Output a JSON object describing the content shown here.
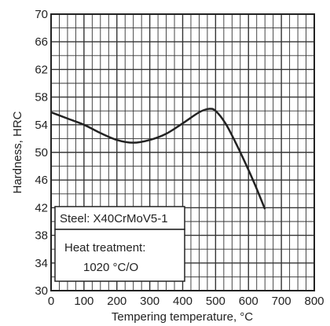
{
  "chart_data": {
    "type": "line",
    "xlabel": "Tempering temperature, °C",
    "ylabel": "Hardness, HRC",
    "xlim": [
      0,
      800
    ],
    "ylim": [
      30,
      70
    ],
    "x_ticks": [
      "0",
      "100",
      "200",
      "300",
      "400",
      "500",
      "600",
      "700",
      "800"
    ],
    "y_ticks": [
      "30",
      "34",
      "38",
      "42",
      "46",
      "50",
      "54",
      "58",
      "62",
      "66",
      "70"
    ],
    "grid": true,
    "series": [
      {
        "x": [
          0,
          50,
          100,
          150,
          200,
          250,
          300,
          350,
          400,
          450,
          480,
          500,
          530,
          560,
          590,
          620,
          650
        ],
        "y": [
          55.8,
          54.9,
          54.0,
          52.8,
          51.8,
          51.4,
          51.8,
          52.7,
          54.2,
          55.8,
          56.3,
          56.0,
          54.2,
          51.5,
          48.5,
          45.3,
          41.8
        ]
      }
    ],
    "annotation": {
      "steel_label": "Steel: X40CrMoV5-1",
      "heat_label": "Heat treatment:",
      "heat_value": "1020 °C/O"
    }
  }
}
